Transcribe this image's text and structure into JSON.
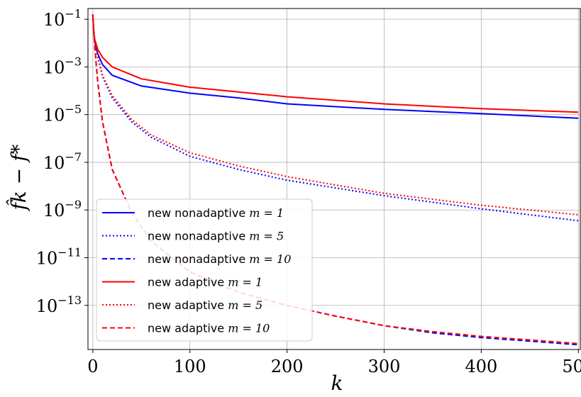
{
  "chart_data": {
    "type": "line",
    "xlabel": "k",
    "ylabel": "f̂k − f*",
    "yscale": "log",
    "xlim": [
      -5,
      502
    ],
    "ylim_log10": [
      -14.85,
      -0.55
    ],
    "xticks": [
      0,
      100,
      200,
      300,
      400,
      500
    ],
    "xtick_labels": [
      "0",
      "100",
      "200",
      "300",
      "400",
      "500"
    ],
    "yticks_exp": [
      -1,
      -3,
      -5,
      -7,
      -9,
      -11,
      -13
    ],
    "ytick_base": "10",
    "ytick_exps": [
      "−1",
      "−3",
      "−5",
      "−7",
      "−9",
      "−11",
      "−13"
    ],
    "grid": true,
    "legend_position": "lower-left",
    "series": [
      {
        "name": "new nonadaptive m = 1",
        "label_text": "new nonadaptive ",
        "label_math": "m = 1",
        "color": "#0000ff",
        "dash": "solid",
        "x": [
          0,
          1,
          2,
          5,
          10,
          20,
          50,
          100,
          150,
          200,
          300,
          400,
          500
        ],
        "log10_y": [
          -0.8,
          -1.6,
          -1.95,
          -2.45,
          -2.9,
          -3.35,
          -3.8,
          -4.1,
          -4.3,
          -4.55,
          -4.78,
          -4.96,
          -5.15
        ]
      },
      {
        "name": "new nonadaptive m = 5",
        "label_text": "new nonadaptive ",
        "label_math": "m = 5",
        "color": "#0000ff",
        "dash": "dotted",
        "x": [
          0,
          1,
          2,
          5,
          10,
          20,
          40,
          60,
          100,
          150,
          200,
          300,
          400,
          500
        ],
        "log10_y": [
          -0.8,
          -1.5,
          -1.9,
          -2.6,
          -3.4,
          -4.3,
          -5.3,
          -5.95,
          -6.75,
          -7.3,
          -7.75,
          -8.4,
          -8.95,
          -9.45
        ]
      },
      {
        "name": "new nonadaptive m = 10",
        "label_text": "new nonadaptive ",
        "label_math": "m = 10",
        "color": "#0000ff",
        "dash": "dashed",
        "x": [
          0,
          1,
          2,
          5,
          10,
          20,
          40,
          60,
          100,
          150,
          200,
          250,
          300,
          350,
          400,
          450,
          500
        ],
        "log10_y": [
          -0.8,
          -1.5,
          -2.2,
          -3.6,
          -5.3,
          -7.3,
          -9.1,
          -10.3,
          -11.6,
          -12.45,
          -13.0,
          -13.45,
          -13.85,
          -14.15,
          -14.35,
          -14.5,
          -14.65
        ]
      },
      {
        "name": "new adaptive m = 1",
        "label_text": "new adaptive ",
        "label_math": "m = 1",
        "color": "#ff0000",
        "dash": "solid",
        "x": [
          0,
          1,
          2,
          5,
          10,
          20,
          50,
          100,
          150,
          200,
          300,
          400,
          500
        ],
        "log10_y": [
          -0.8,
          -1.55,
          -1.85,
          -2.25,
          -2.6,
          -3.0,
          -3.5,
          -3.85,
          -4.05,
          -4.25,
          -4.55,
          -4.75,
          -4.9
        ]
      },
      {
        "name": "new adaptive m = 5",
        "label_text": "new adaptive ",
        "label_math": "m = 5",
        "color": "#ff0000",
        "dash": "dotted",
        "x": [
          0,
          1,
          2,
          5,
          10,
          20,
          40,
          60,
          100,
          150,
          200,
          300,
          400,
          500
        ],
        "log10_y": [
          -0.8,
          -1.45,
          -1.85,
          -2.55,
          -3.35,
          -4.2,
          -5.2,
          -5.85,
          -6.6,
          -7.15,
          -7.6,
          -8.3,
          -8.8,
          -9.2
        ]
      },
      {
        "name": "new adaptive m = 10",
        "label_text": "new adaptive ",
        "label_math": "m = 10",
        "color": "#ff0000",
        "dash": "dashed",
        "x": [
          0,
          1,
          2,
          5,
          10,
          20,
          40,
          60,
          100,
          150,
          200,
          250,
          300,
          350,
          400,
          450,
          500
        ],
        "log10_y": [
          -0.8,
          -1.5,
          -2.2,
          -3.6,
          -5.3,
          -7.3,
          -9.1,
          -10.3,
          -11.6,
          -12.45,
          -13.0,
          -13.45,
          -13.85,
          -14.1,
          -14.3,
          -14.45,
          -14.6
        ]
      }
    ]
  }
}
